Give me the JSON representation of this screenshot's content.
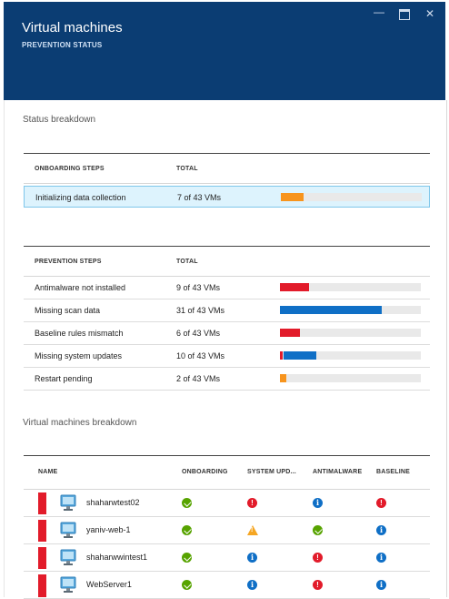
{
  "header": {
    "title": "Virtual machines",
    "subtitle": "PREVENTION STATUS",
    "background": "#0b3d73"
  },
  "status_breakdown_label": "Status breakdown",
  "onboarding": {
    "col1": "ONBOARDING STEPS",
    "col2": "TOTAL",
    "rows": [
      {
        "name": "Initializing data collection",
        "total": "7 of 43 VMs",
        "bar_color": "#f7941d",
        "bar_fraction": 0.163,
        "selected": true
      }
    ]
  },
  "prevention": {
    "col1": "PREVENTION STEPS",
    "col2": "TOTAL",
    "rows": [
      {
        "name": "Antimalware not installed",
        "total": "9 of 43 VMs",
        "bar_color": "#e21b2a",
        "bar_fraction": 0.209
      },
      {
        "name": "Missing scan data",
        "total": "31 of 43 VMs",
        "bar_color": "#0f6fc6",
        "bar_fraction": 0.721
      },
      {
        "name": "Baseline rules mismatch",
        "total": "6 of 43 VMs",
        "bar_color": "#e21b2a",
        "bar_fraction": 0.14
      },
      {
        "name": "Missing system updates",
        "total": "10 of 43 VMs",
        "bar_color": "#0f6fc6",
        "bar_fraction": 0.233,
        "bar_accent": "#e21b2a"
      },
      {
        "name": "Restart pending",
        "total": "2 of 43 VMs",
        "bar_color": "#f7941d",
        "bar_fraction": 0.047
      }
    ]
  },
  "vm_breakdown_label": "Virtual machines breakdown",
  "vm_table": {
    "columns": [
      "NAME",
      "ONBOARDING",
      "SYSTEM UPD...",
      "ANTIMALWARE",
      "BASELINE"
    ],
    "rows": [
      {
        "name": "shaharwtest02",
        "onboarding": "ok",
        "system_updates": "error",
        "antimalware": "info",
        "baseline": "error"
      },
      {
        "name": "yaniv-web-1",
        "onboarding": "ok",
        "system_updates": "warning",
        "antimalware": "ok",
        "baseline": "info"
      },
      {
        "name": "shaharwwintest1",
        "onboarding": "ok",
        "system_updates": "info",
        "antimalware": "error",
        "baseline": "info"
      },
      {
        "name": "WebServer1",
        "onboarding": "ok",
        "system_updates": "info",
        "antimalware": "error",
        "baseline": "info"
      }
    ]
  },
  "icons": {
    "minimize": "minimize-icon",
    "maximize": "maximize-icon",
    "close": "close-icon",
    "vm": "monitor-icon"
  },
  "colors": {
    "error": "#e21b2a",
    "ok": "#57a300",
    "info": "#0f6fc6",
    "warning": "#f5a623"
  }
}
